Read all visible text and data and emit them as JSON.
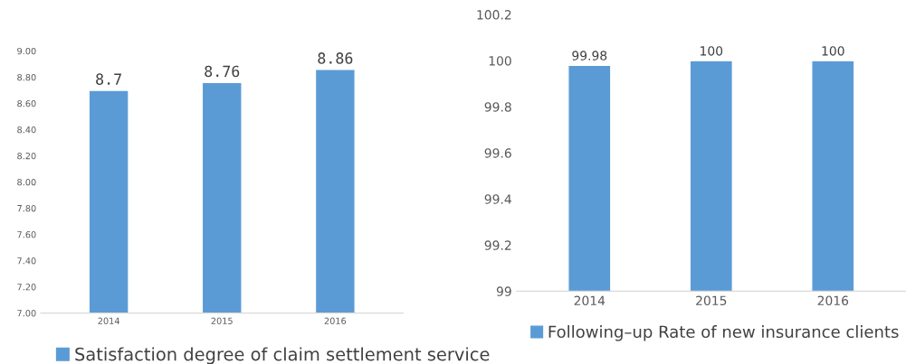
{
  "chart_data": [
    {
      "type": "bar",
      "categories": [
        "2014",
        "2015",
        "2016"
      ],
      "series": [
        {
          "name": "Satisfaction degree of claim settlement service",
          "color": "#5b9bd5",
          "values": [
            8.7,
            8.76,
            8.86
          ]
        }
      ],
      "ylim": [
        7.0,
        9.0
      ],
      "yticks": [
        {
          "value": 7.0,
          "label": "7.00"
        },
        {
          "value": 7.2,
          "label": "7.20"
        },
        {
          "value": 7.4,
          "label": "7.40"
        },
        {
          "value": 7.6,
          "label": "7.60"
        },
        {
          "value": 7.8,
          "label": "7.80"
        },
        {
          "value": 8.0,
          "label": "8.00"
        },
        {
          "value": 8.2,
          "label": "8.20"
        },
        {
          "value": 8.4,
          "label": "8.40"
        },
        {
          "value": 8.6,
          "label": "8.60"
        },
        {
          "value": 8.8,
          "label": "8.80"
        },
        {
          "value": 9.0,
          "label": "9.00"
        }
      ],
      "data_labels": true,
      "legend": "bottom",
      "grid": false
    },
    {
      "type": "bar",
      "categories": [
        "2014",
        "2015",
        "2016"
      ],
      "series": [
        {
          "name": "Following–up Rate of new insurance clients",
          "color": "#5b9bd5",
          "values": [
            99.98,
            100,
            100
          ]
        }
      ],
      "ylim": [
        99,
        100.2
      ],
      "yticks": [
        99,
        99.2,
        99.4,
        99.6,
        99.8,
        100,
        100.2
      ],
      "data_labels": true,
      "legend": "bottom",
      "grid": false
    }
  ]
}
